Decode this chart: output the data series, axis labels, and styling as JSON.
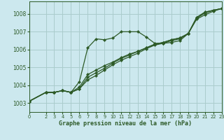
{
  "bg_color": "#cce8ee",
  "grid_color": "#aacccc",
  "line_color": "#2d5a27",
  "marker_color": "#2d5a27",
  "xlabel": "Graphe pression niveau de la mer (hPa)",
  "xlim": [
    0,
    23
  ],
  "ylim": [
    1002.5,
    1008.7
  ],
  "xticks": [
    0,
    2,
    3,
    4,
    5,
    6,
    7,
    8,
    9,
    10,
    11,
    12,
    13,
    14,
    15,
    16,
    17,
    18,
    19,
    20,
    21,
    22,
    23
  ],
  "yticks": [
    1003,
    1004,
    1005,
    1006,
    1007,
    1008
  ],
  "curve1_x": [
    0,
    2,
    3,
    4,
    5,
    6,
    7,
    8,
    9,
    10,
    11,
    12,
    13,
    14,
    15,
    16,
    17,
    18,
    19,
    20,
    21,
    22,
    23
  ],
  "curve1_y": [
    1003.1,
    1003.6,
    1003.6,
    1003.7,
    1003.6,
    1004.2,
    1006.1,
    1006.6,
    1006.55,
    1006.65,
    1007.0,
    1007.0,
    1007.0,
    1006.7,
    1006.35,
    1006.35,
    1006.4,
    1006.5,
    1006.9,
    1007.8,
    1008.1,
    1008.2,
    1008.3
  ],
  "curve2_x": [
    0,
    2,
    3,
    4,
    5,
    6,
    7,
    8,
    9,
    10,
    11,
    12,
    13,
    14,
    15,
    16,
    17,
    18,
    19,
    20,
    21,
    22,
    23
  ],
  "curve2_y": [
    1003.1,
    1003.6,
    1003.6,
    1003.7,
    1003.6,
    1003.8,
    1004.3,
    1004.55,
    1004.85,
    1005.15,
    1005.4,
    1005.6,
    1005.8,
    1006.05,
    1006.25,
    1006.35,
    1006.5,
    1006.6,
    1006.9,
    1007.8,
    1008.1,
    1008.2,
    1008.3
  ],
  "curve3_x": [
    0,
    2,
    3,
    4,
    5,
    6,
    7,
    8,
    9,
    10,
    11,
    12,
    13,
    14,
    15,
    16,
    17,
    18,
    19,
    20,
    21,
    22,
    23
  ],
  "curve3_y": [
    1003.1,
    1003.6,
    1003.6,
    1003.7,
    1003.6,
    1003.8,
    1004.45,
    1004.7,
    1004.95,
    1005.25,
    1005.5,
    1005.7,
    1005.9,
    1006.1,
    1006.3,
    1006.4,
    1006.55,
    1006.65,
    1006.9,
    1007.75,
    1008.05,
    1008.2,
    1008.3
  ],
  "curve4_x": [
    0,
    2,
    3,
    4,
    5,
    6,
    7,
    8,
    9,
    10,
    11,
    12,
    13,
    14,
    15,
    16,
    17,
    18,
    19,
    20,
    21,
    22,
    23
  ],
  "curve4_y": [
    1003.1,
    1003.6,
    1003.6,
    1003.7,
    1003.6,
    1003.9,
    1004.6,
    1004.85,
    1005.1,
    1005.3,
    1005.55,
    1005.75,
    1005.9,
    1006.1,
    1006.3,
    1006.4,
    1006.55,
    1006.65,
    1006.9,
    1007.7,
    1007.95,
    1008.15,
    1008.3
  ]
}
